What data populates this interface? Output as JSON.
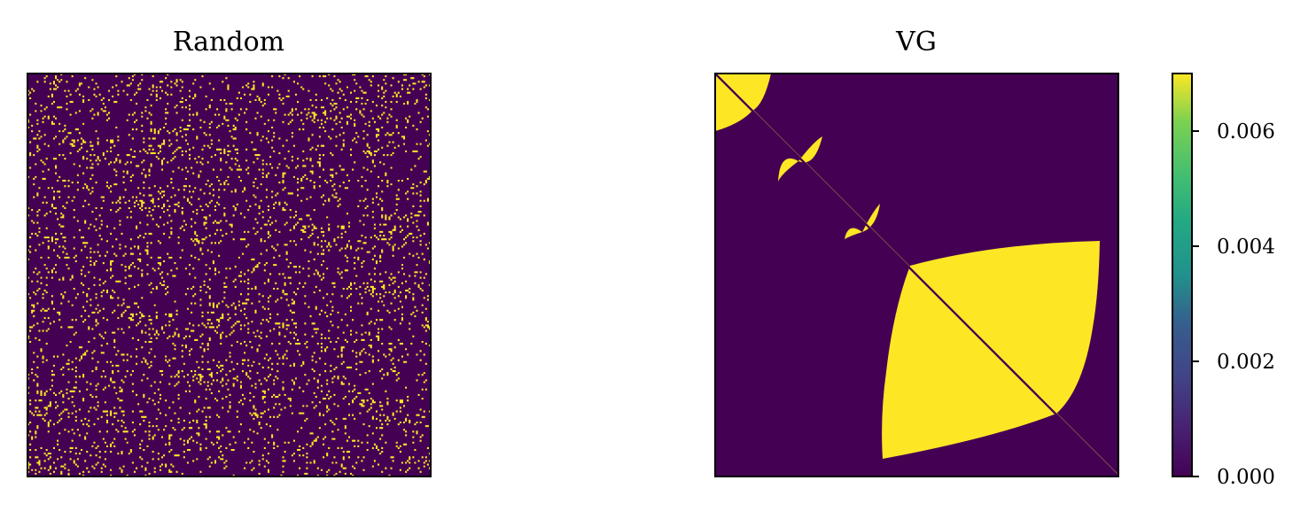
{
  "chart_data": [
    {
      "type": "heatmap",
      "title": "Random",
      "xlabel": "",
      "ylabel": "",
      "description_pattern": "random-sparse",
      "matrix_size": 220,
      "value_low": 0.0,
      "value_high": 0.007,
      "fill_fraction": 0.08,
      "ticks": "none"
    },
    {
      "type": "heatmap",
      "title": "VG",
      "xlabel": "",
      "ylabel": "",
      "description_pattern": "visibility-graph",
      "matrix_size": 220,
      "value_low": 0.0,
      "value_high": 0.007,
      "ticks": "none",
      "diagonal": "low-value line along main diagonal",
      "blocks": [
        {
          "center": 0.04,
          "extent": 0.08
        },
        {
          "center": 0.235,
          "extent": 0.055
        },
        {
          "center": 0.39,
          "extent": 0.045
        },
        {
          "center": 0.72,
          "extent": 0.26
        }
      ]
    }
  ],
  "colorbar": {
    "colormap": "viridis",
    "range": [
      0.0,
      0.007
    ],
    "tick_values": [
      0.0,
      0.002,
      0.004,
      0.006
    ],
    "tick_labels": [
      "0.000",
      "0.002",
      "0.004",
      "0.006"
    ]
  },
  "colors": {
    "low": "#440154",
    "high": "#fde725",
    "frame": "#000000"
  }
}
